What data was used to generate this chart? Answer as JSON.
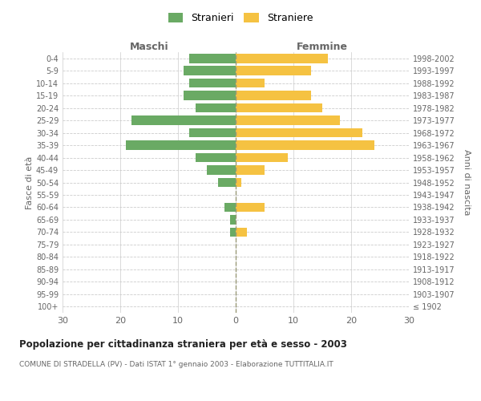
{
  "age_groups": [
    "100+",
    "95-99",
    "90-94",
    "85-89",
    "80-84",
    "75-79",
    "70-74",
    "65-69",
    "60-64",
    "55-59",
    "50-54",
    "45-49",
    "40-44",
    "35-39",
    "30-34",
    "25-29",
    "20-24",
    "15-19",
    "10-14",
    "5-9",
    "0-4"
  ],
  "birth_years": [
    "≤ 1902",
    "1903-1907",
    "1908-1912",
    "1913-1917",
    "1918-1922",
    "1923-1927",
    "1928-1932",
    "1933-1937",
    "1938-1942",
    "1943-1947",
    "1948-1952",
    "1953-1957",
    "1958-1962",
    "1963-1967",
    "1968-1972",
    "1973-1977",
    "1978-1982",
    "1983-1987",
    "1988-1992",
    "1993-1997",
    "1998-2002"
  ],
  "males": [
    0,
    0,
    0,
    0,
    0,
    0,
    1,
    1,
    2,
    0,
    3,
    5,
    7,
    19,
    8,
    18,
    7,
    9,
    8,
    9,
    8
  ],
  "females": [
    0,
    0,
    0,
    0,
    0,
    0,
    2,
    0,
    5,
    0,
    1,
    5,
    9,
    24,
    22,
    18,
    15,
    13,
    5,
    13,
    16
  ],
  "male_color": "#6aaa64",
  "female_color": "#f5c242",
  "grid_color": "#cccccc",
  "axis_label_color": "#666666",
  "title": "Popolazione per cittadinanza straniera per età e sesso - 2003",
  "subtitle": "COMUNE DI STRADELLA (PV) - Dati ISTAT 1° gennaio 2003 - Elaborazione TUTTITALIA.IT",
  "ylabel_left": "Fasce di età",
  "ylabel_right": "Anni di nascita",
  "xlabel_left": "Maschi",
  "xlabel_right": "Femmine",
  "legend_stranieri": "Stranieri",
  "legend_straniere": "Straniere",
  "xlim": 30,
  "background_color": "#ffffff"
}
